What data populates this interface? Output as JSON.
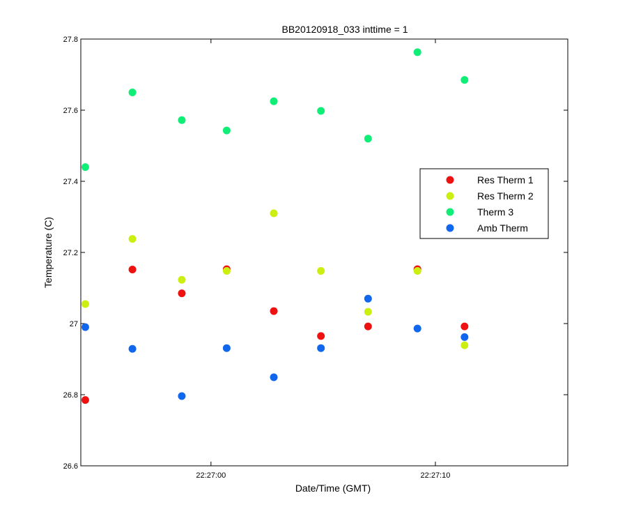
{
  "chart_data": {
    "type": "scatter",
    "title": "BB20120918_033 inttime = 1",
    "xlabel": "Date/Time (GMT)",
    "ylabel": "Temperature (C)",
    "xlim": [
      "22:26:54.2",
      "22:27:15.9"
    ],
    "ylim": [
      26.6,
      27.8
    ],
    "xticks": [
      "22:27:00",
      "22:27:10"
    ],
    "yticks": [
      "26.6",
      "26.8",
      "27",
      "27.2",
      "27.4",
      "27.6",
      "27.8"
    ],
    "grid": false,
    "legend_position": "right",
    "x": [
      "22:26:54.4",
      "22:26:56.5",
      "22:26:58.7",
      "22:27:00.7",
      "22:27:02.8",
      "22:27:04.9",
      "22:27:07.0",
      "22:27:09.2",
      "22:27:11.3"
    ],
    "series": [
      {
        "name": "Res Therm 1",
        "color": "#ee1111",
        "values": [
          26.785,
          27.152,
          27.085,
          27.153,
          27.035,
          26.965,
          26.992,
          27.153,
          26.992
        ]
      },
      {
        "name": "Res Therm 2",
        "color": "#ccee11",
        "values": [
          27.055,
          27.238,
          27.123,
          27.148,
          27.31,
          27.148,
          27.033,
          27.148,
          26.939
        ]
      },
      {
        "name": "Therm 3",
        "color": "#11ee77",
        "values": [
          27.44,
          27.65,
          27.572,
          27.543,
          27.625,
          27.598,
          27.52,
          27.763,
          27.685
        ]
      },
      {
        "name": "Amb Therm",
        "color": "#1166ee",
        "values": [
          26.99,
          26.929,
          26.796,
          26.931,
          26.849,
          26.931,
          27.07,
          26.986,
          26.962
        ]
      }
    ]
  }
}
